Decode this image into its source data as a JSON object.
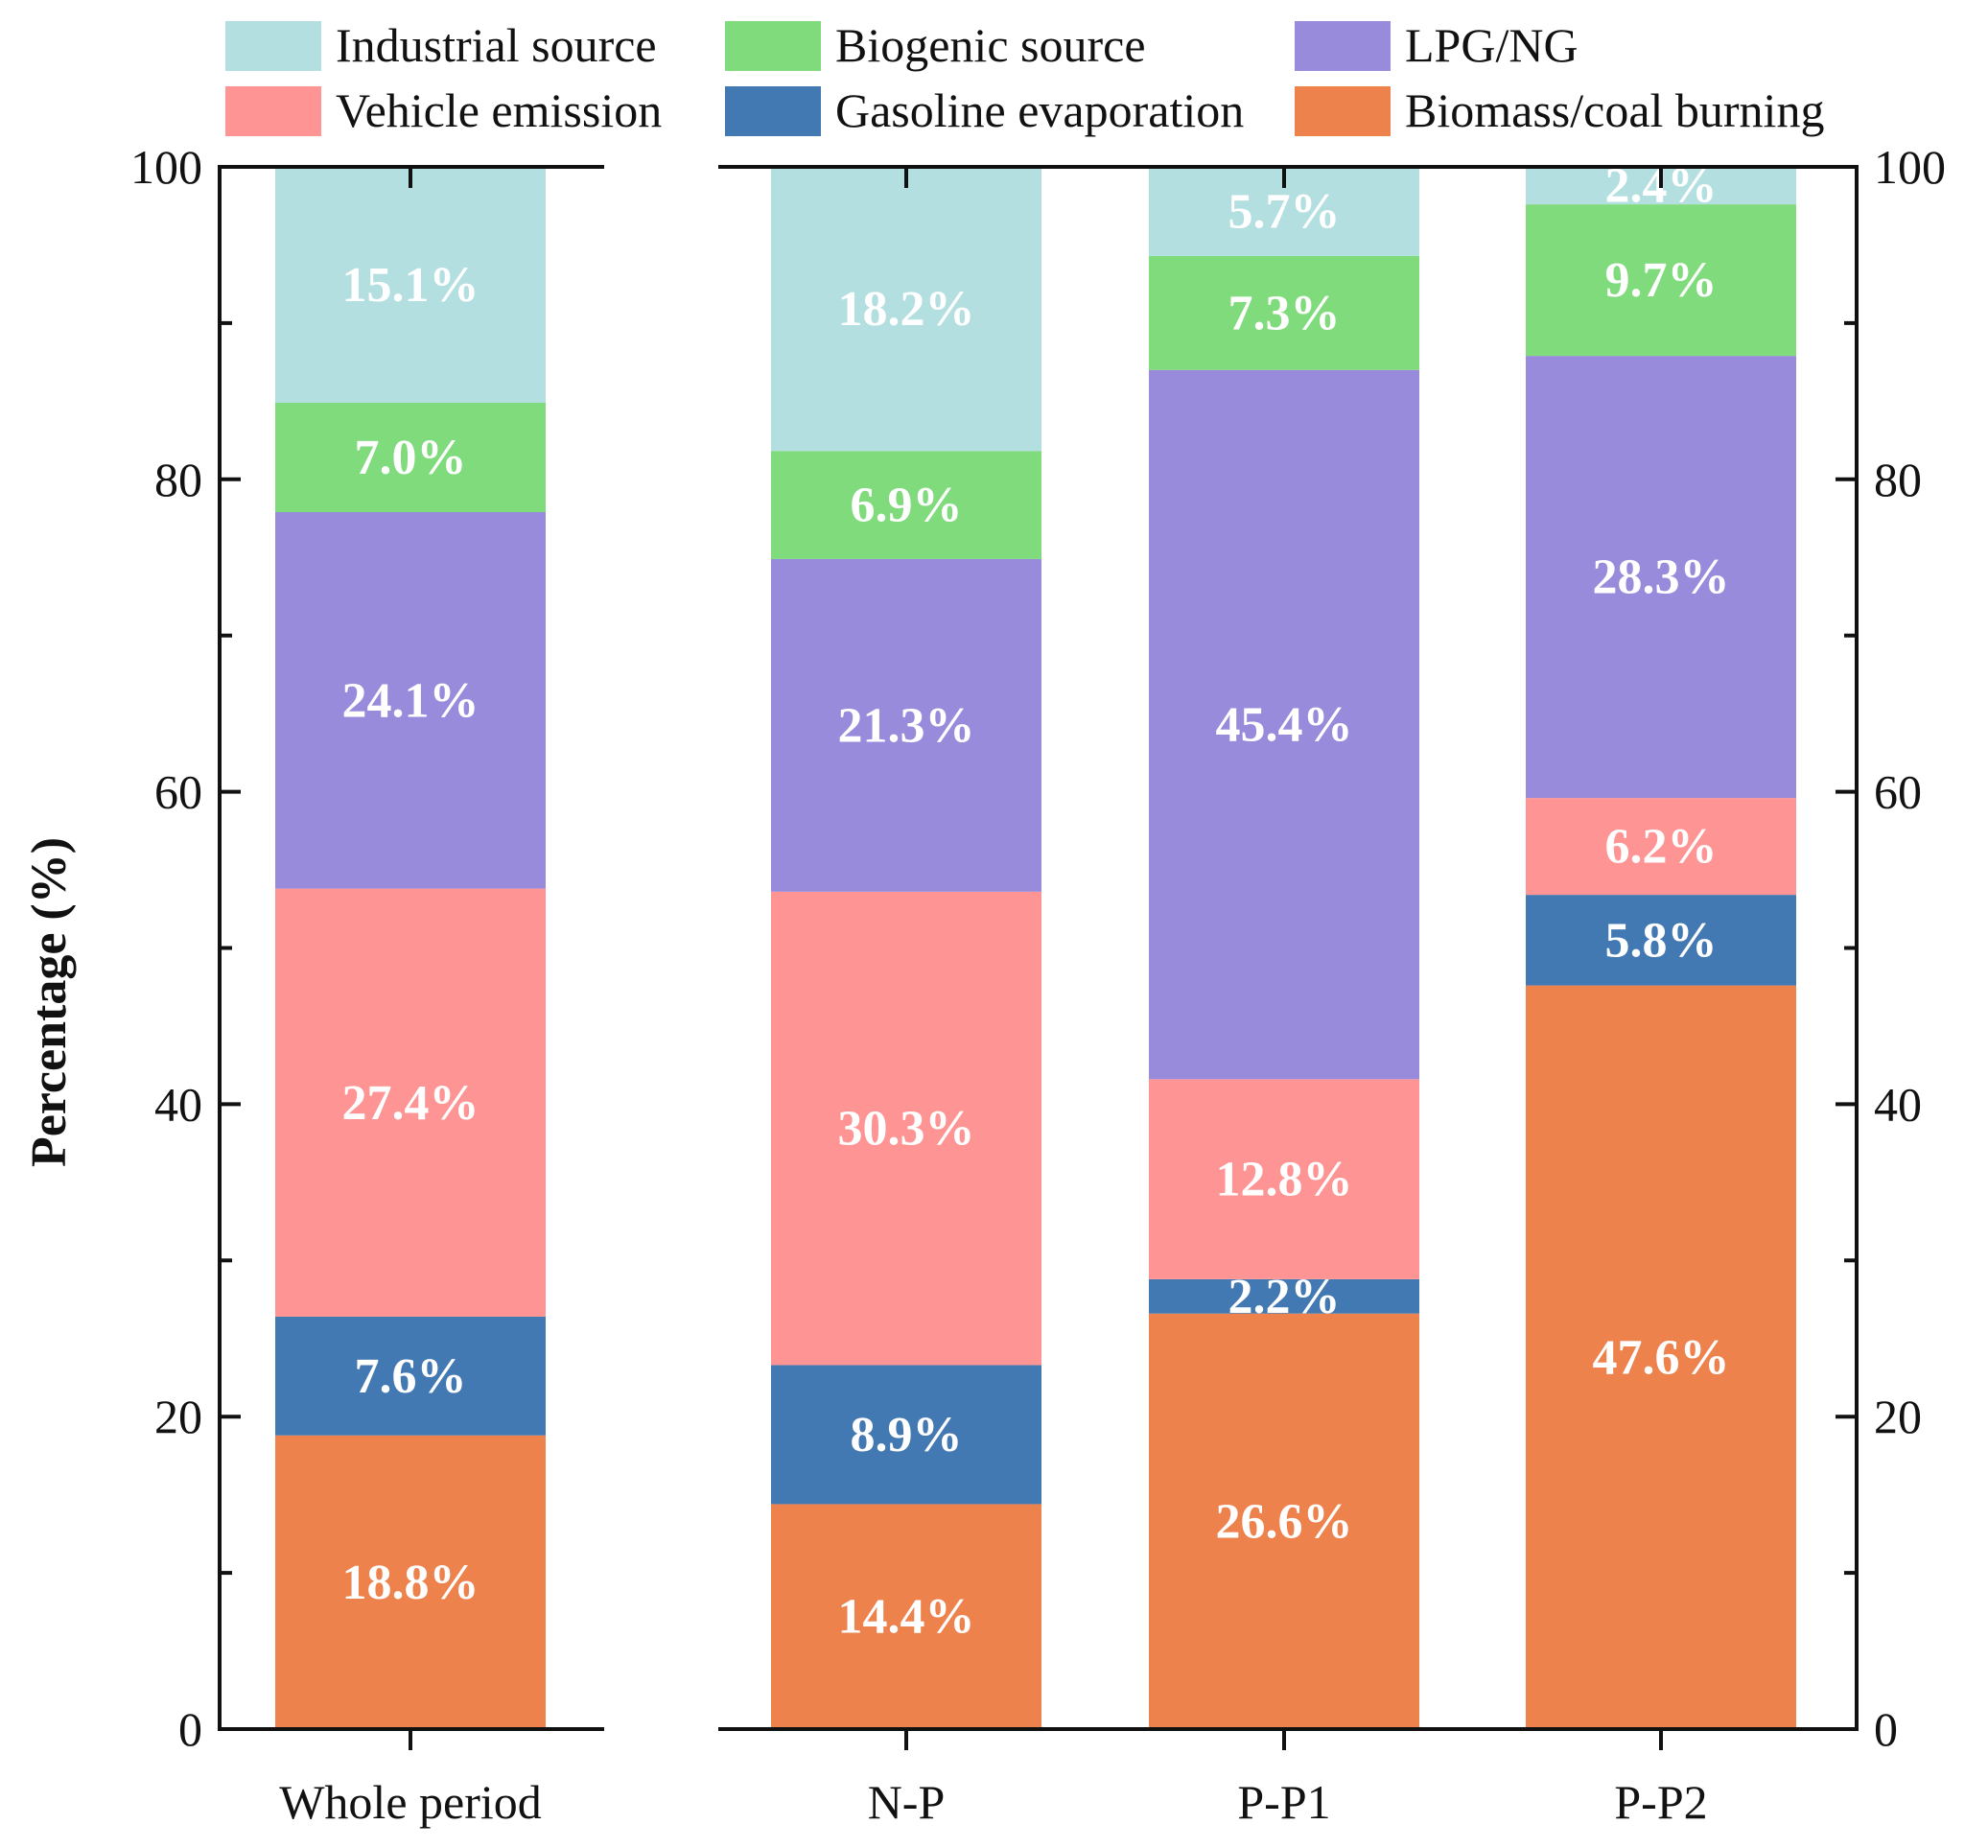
{
  "chart_data": {
    "type": "bar",
    "stacked": true,
    "title": "",
    "xlabel": "",
    "ylabel": "Percentage (%)",
    "ylim": [
      0,
      100
    ],
    "yticks": [
      0,
      20,
      40,
      60,
      80,
      100
    ],
    "categories": [
      "Whole period",
      "N-P",
      "P-P1",
      "P-P2"
    ],
    "series": [
      {
        "name": "Biomass/coal burning",
        "color": "#ED824D",
        "values": [
          18.8,
          14.4,
          26.6,
          47.6
        ],
        "labels": [
          "18.8%",
          "14.4%",
          "26.6%",
          "47.6%"
        ]
      },
      {
        "name": "Gasoline evaporation",
        "color": "#4379B2",
        "values": [
          7.6,
          8.9,
          2.2,
          5.8
        ],
        "labels": [
          "7.6%",
          "8.9%",
          "2.2%",
          "5.8%"
        ]
      },
      {
        "name": "Vehicle emission",
        "color": "#FE9594",
        "values": [
          27.4,
          30.3,
          12.8,
          6.2
        ],
        "labels": [
          "27.4%",
          "30.3%",
          "12.8%",
          "6.2%"
        ]
      },
      {
        "name": "LPG/NG",
        "color": "#998BDB",
        "values": [
          24.1,
          21.3,
          45.4,
          28.3
        ],
        "labels": [
          "24.1%",
          "21.3%",
          "45.4%",
          "28.3%"
        ]
      },
      {
        "name": "Biogenic source",
        "color": "#7FDB7B",
        "values": [
          7.0,
          6.9,
          7.3,
          9.7
        ],
        "labels": [
          "7.0%",
          "6.9%",
          "7.3%",
          "9.7%"
        ]
      },
      {
        "name": "Industrial source",
        "color": "#B3DFE0",
        "values": [
          15.1,
          18.2,
          5.7,
          2.4
        ],
        "labels": [
          "15.1%",
          "18.2%",
          "5.7%",
          "2.4%"
        ]
      }
    ],
    "legend": {
      "position": "top",
      "rows": [
        [
          "Industrial source",
          "Biogenic source",
          "LPG/NG"
        ],
        [
          "Vehicle emission",
          "Gasoline evaporation",
          "Biomass/coal burning"
        ]
      ]
    }
  }
}
